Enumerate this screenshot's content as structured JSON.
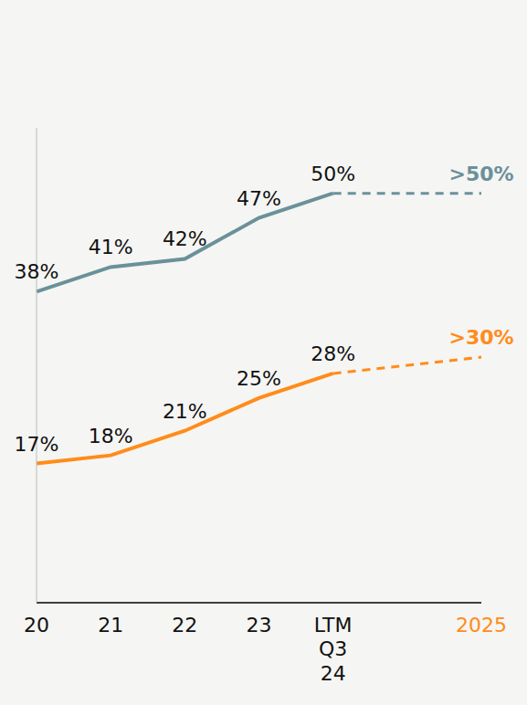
{
  "chart_data": {
    "type": "line",
    "categories": [
      "20",
      "21",
      "22",
      "23",
      "LTM Q3 24",
      null,
      "2025"
    ],
    "series": [
      {
        "color": "#6a9199",
        "values": [
          38,
          41,
          42,
          47,
          50,
          null,
          50
        ],
        "value_labels": [
          "38%",
          "41%",
          "42%",
          "47%",
          "50%",
          null,
          ">50%"
        ]
      },
      {
        "color": "#ff8c1a",
        "values": [
          17,
          18,
          21,
          25,
          28,
          null,
          30
        ],
        "value_labels": [
          "17%",
          "18%",
          "21%",
          "25%",
          "28%",
          null,
          ">30%"
        ]
      }
    ],
    "ylim": [
      0,
      58
    ],
    "tick_labels": "x",
    "data_labels": true,
    "grid": false
  }
}
